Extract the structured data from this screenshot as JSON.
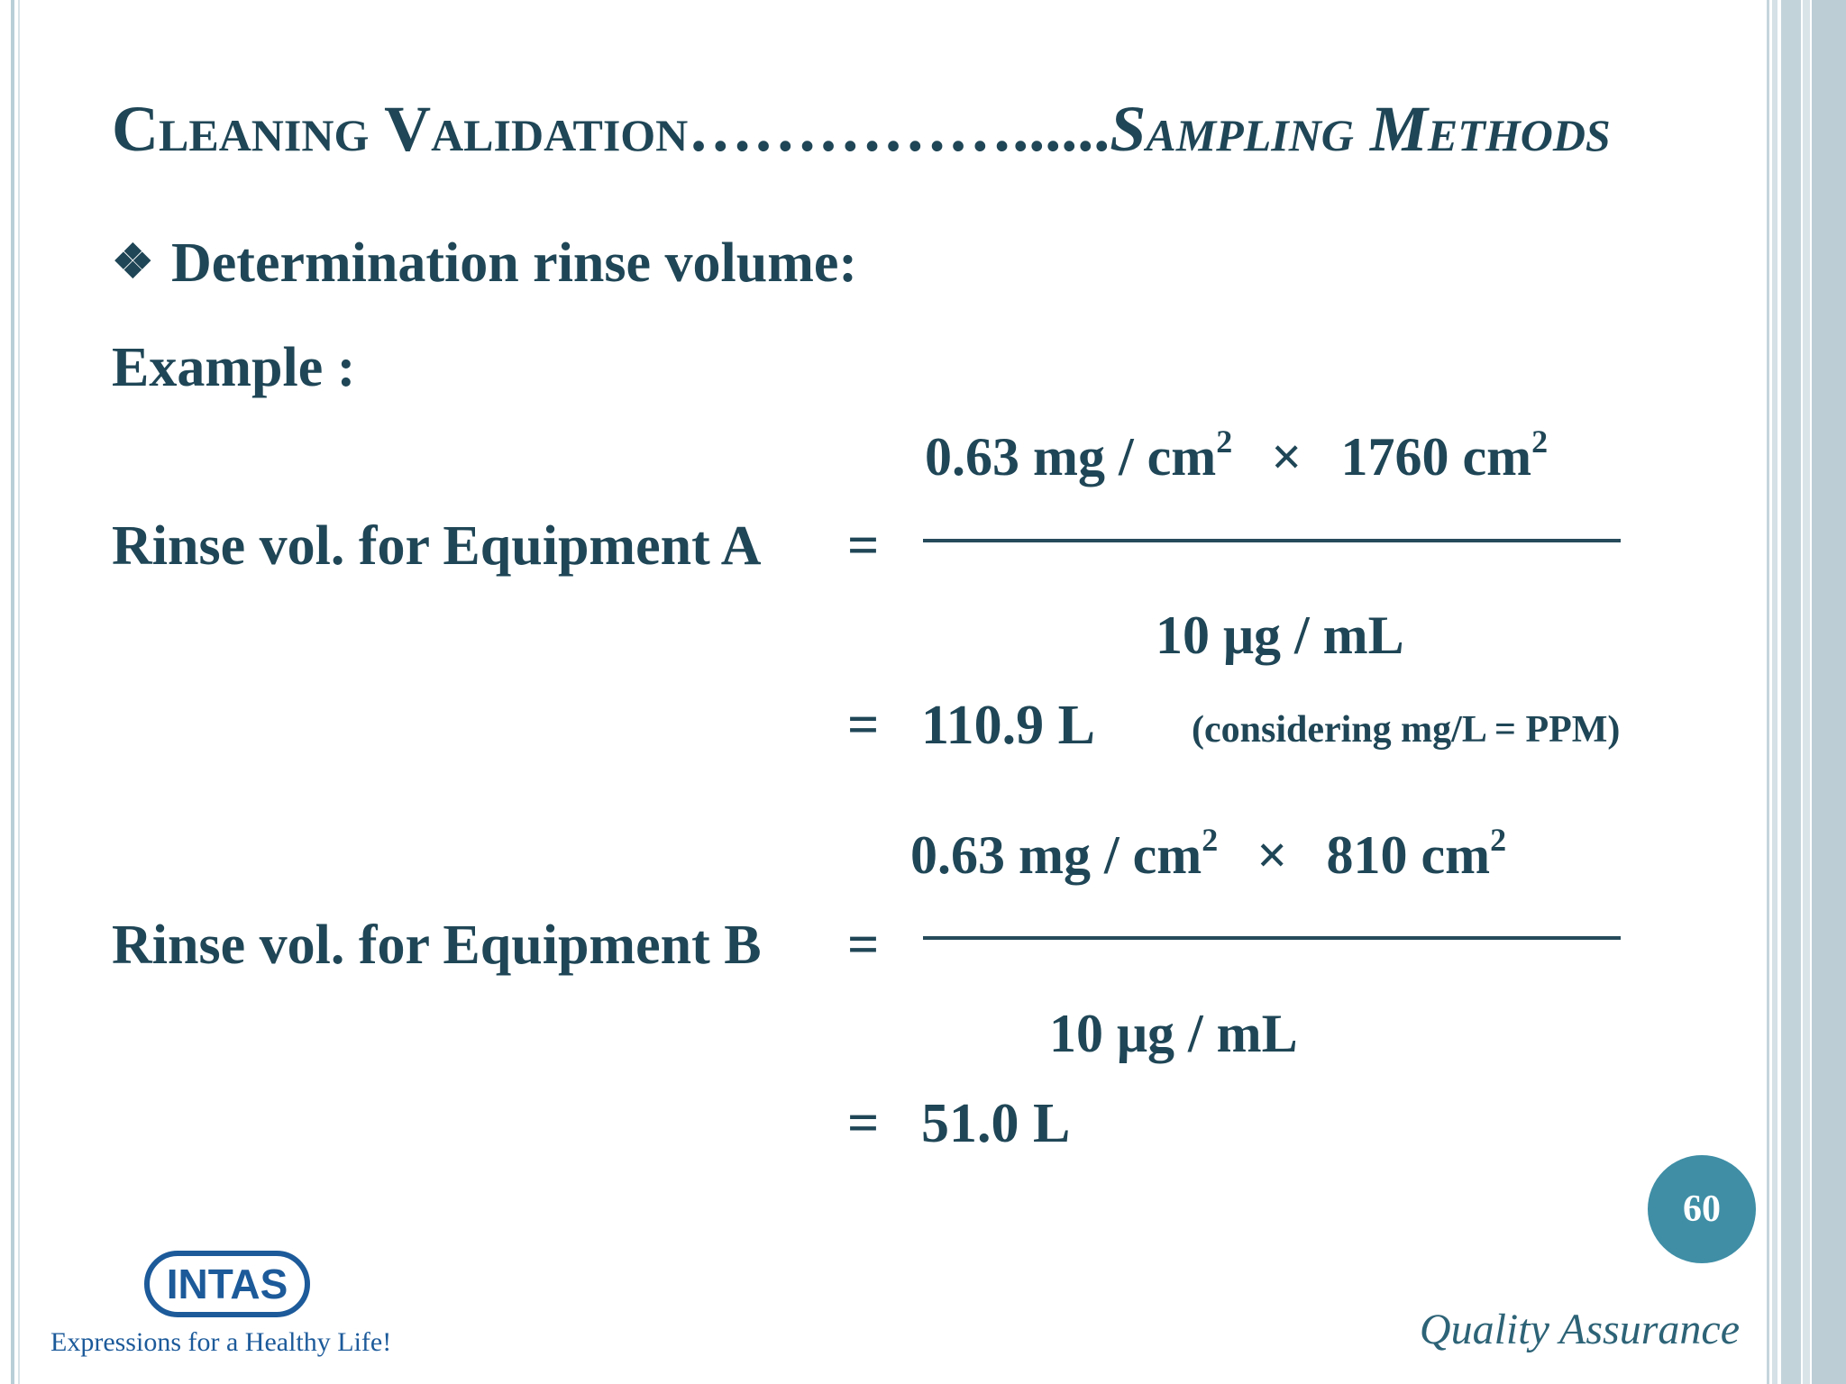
{
  "slide": {
    "title_main": "Cleaning Validation……………......",
    "title_sub": "Sampling Methods",
    "bullet": "❖",
    "heading": "Determination rinse volume:",
    "example_label": "Example :",
    "equipment_a": {
      "label": "Rinse vol. for Equipment A",
      "equals": "=",
      "numerator_value1": "0.63 mg / cm",
      "numerator_exp1": "2",
      "times": "×",
      "numerator_value2": "1760 cm",
      "numerator_exp2": "2",
      "denominator": "10 μg / mL",
      "result_equals": "=",
      "result": "110.9 L",
      "note": "(considering mg/L  = PPM)"
    },
    "equipment_b": {
      "label": "Rinse vol. for Equipment B",
      "equals": "=",
      "numerator_value1": "0.63 mg / cm",
      "numerator_exp1": "2",
      "times": "×",
      "numerator_value2": "810 cm",
      "numerator_exp2": "2",
      "denominator": "10 μg / mL",
      "result_equals": "=",
      "result": "51.0 L"
    },
    "page_number": "60",
    "logo_text": "INTAS",
    "tagline": "Expressions for a Healthy Life!",
    "footer": "Quality Assurance"
  },
  "colors": {
    "text": "#1f4656",
    "page_circle": "#3f8ea6",
    "logo": "#1c5a9a",
    "border": "#bccdd5"
  }
}
